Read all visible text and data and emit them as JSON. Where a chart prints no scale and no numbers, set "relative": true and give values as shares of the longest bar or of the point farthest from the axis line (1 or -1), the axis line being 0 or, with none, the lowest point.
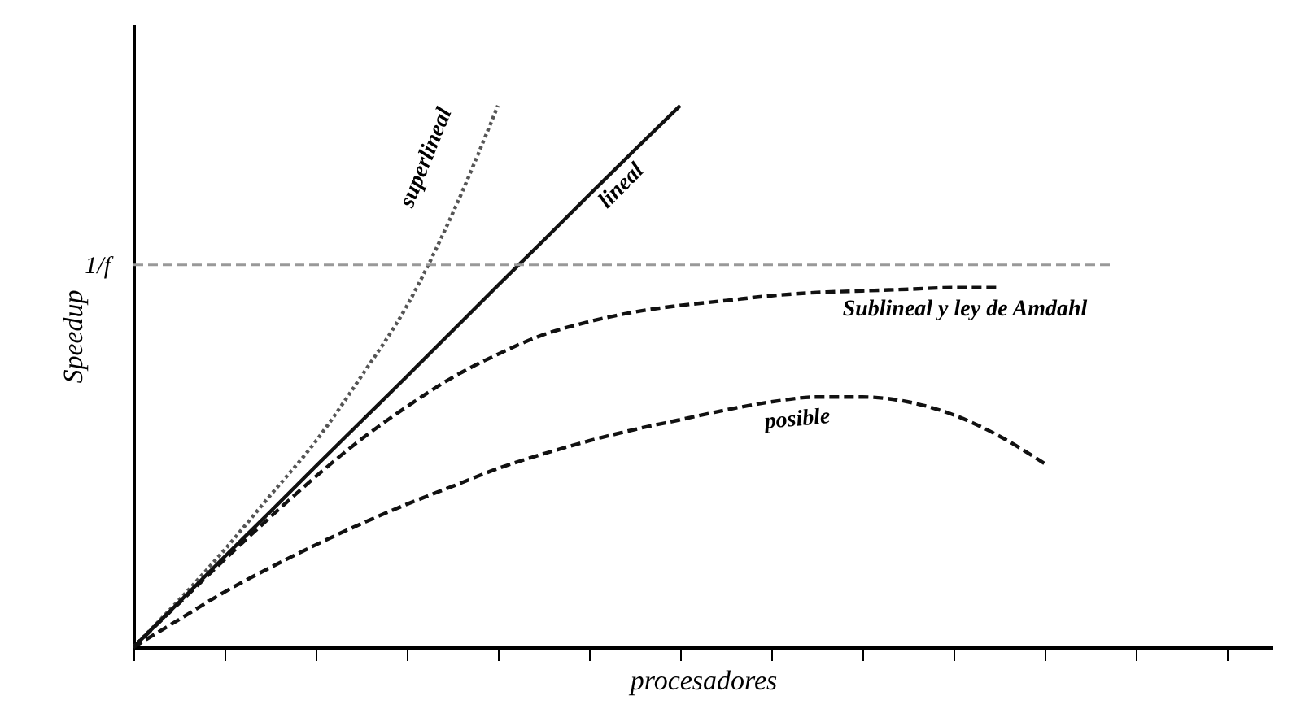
{
  "chart_data": {
    "type": "line",
    "relative": true,
    "xlabel": "procesadores",
    "ylabel": "Speedup",
    "grid": false,
    "tick_labels": false,
    "categories": [
      null,
      null,
      null,
      null,
      null,
      null,
      null,
      null,
      null,
      null,
      null,
      null,
      null,
      null,
      null,
      null,
      null,
      null,
      null,
      null,
      null
    ],
    "series": [
      {
        "name": "superlineal",
        "color": "#555555",
        "line_style": "dotted",
        "values": [
          0,
          0.087,
          0.18,
          0.28,
          0.38,
          0.5,
          0.63,
          0.8,
          1,
          null,
          null,
          null,
          null,
          null,
          null,
          null,
          null,
          null,
          null,
          null,
          null
        ]
      },
      {
        "name": "lineal",
        "color": "#111111",
        "line_style": "solid",
        "values": [
          0,
          0.083,
          0.167,
          0.25,
          0.334,
          0.417,
          0.5,
          0.584,
          0.668,
          0.751,
          0.835,
          0.918,
          1,
          null,
          null,
          null,
          null,
          null,
          null,
          null,
          null
        ]
      },
      {
        "name": "Sublineal y ley de Amdahl",
        "color": "#111111",
        "line_style": "dashed",
        "values": [
          0,
          0.081,
          0.162,
          0.24,
          0.315,
          0.384,
          0.444,
          0.498,
          0.541,
          0.577,
          0.601,
          0.619,
          0.631,
          0.64,
          0.649,
          0.655,
          0.658,
          0.661,
          0.664,
          0.664,
          null
        ]
      },
      {
        "name": "posible",
        "color": "#111111",
        "line_style": "dashed",
        "values": [
          0,
          0.051,
          0.102,
          0.147,
          0.189,
          0.228,
          0.264,
          0.297,
          0.33,
          0.357,
          0.381,
          0.402,
          0.42,
          0.438,
          0.453,
          0.462,
          0.462,
          0.453,
          0.429,
          0.39,
          0.339
        ]
      }
    ],
    "ref_lines": [
      {
        "axis": "y",
        "value": 0.706,
        "label": "1/f",
        "color": "#999999",
        "line_style": "dashed"
      }
    ]
  }
}
